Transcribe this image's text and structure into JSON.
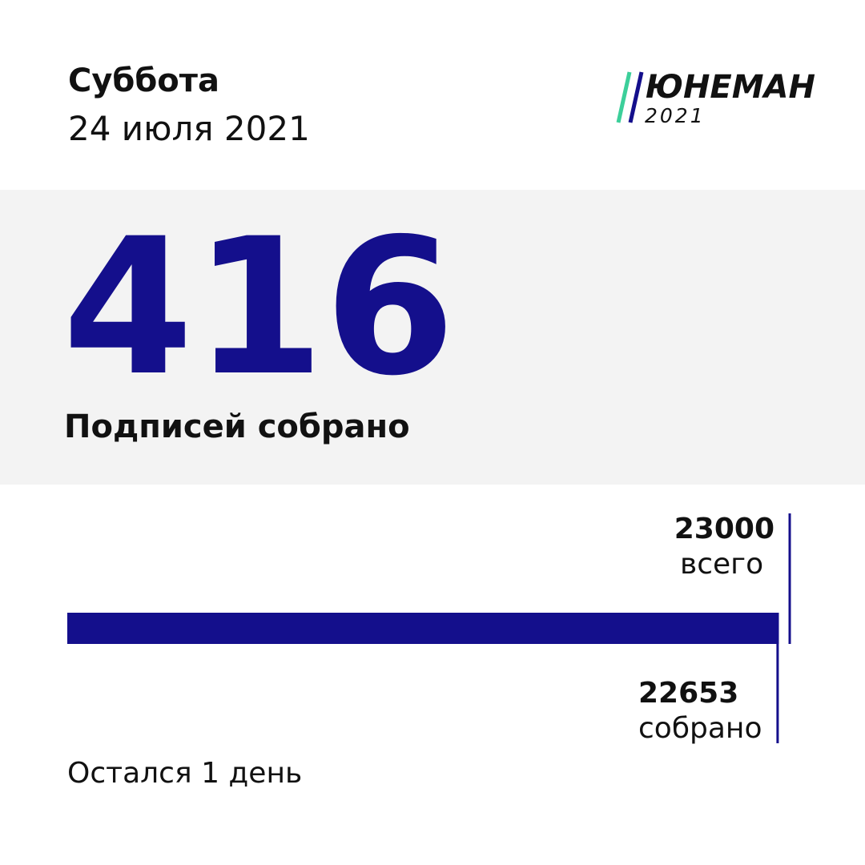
{
  "header": {
    "weekday": "Суббота",
    "date": "24 июля 2021",
    "logo": {
      "name": "ЮНЕМАН",
      "year": "2021"
    }
  },
  "daily": {
    "value": 416,
    "label": "Подписей собрано"
  },
  "progress": {
    "goal": 23000,
    "goal_label": "всего",
    "collected": 22653,
    "collected_label": "собрано"
  },
  "footer": "Остался 1 день"
}
